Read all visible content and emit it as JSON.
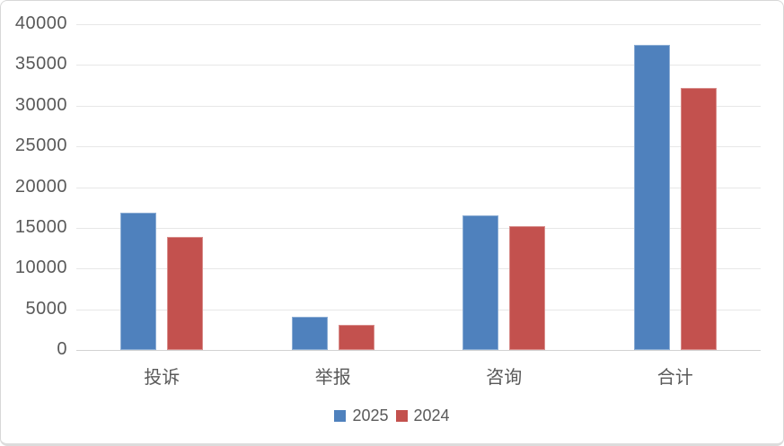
{
  "chart_data": {
    "type": "bar",
    "categories": [
      "投诉",
      "举报",
      "咨询",
      "合计"
    ],
    "series": [
      {
        "name": "2025",
        "color": "#4F81BD",
        "values": [
          16900,
          4100,
          16500,
          37500
        ]
      },
      {
        "name": "2024",
        "color": "#C3514E",
        "values": [
          13900,
          3100,
          15200,
          32200
        ]
      }
    ],
    "title": "",
    "xlabel": "",
    "ylabel": "",
    "ylim": [
      0,
      40000
    ],
    "ytick_step": 5000,
    "ytick_labels": [
      "0",
      "5000",
      "10000",
      "15000",
      "20000",
      "25000",
      "30000",
      "35000",
      "40000"
    ],
    "grid": true,
    "legend_position": "bottom"
  },
  "style": {
    "gridline_color": "#e7e7e7",
    "axis_line_color": "#d2d2d2",
    "text_color": "#595959",
    "background": "#ffffff",
    "border_color": "#d8d8d8"
  }
}
